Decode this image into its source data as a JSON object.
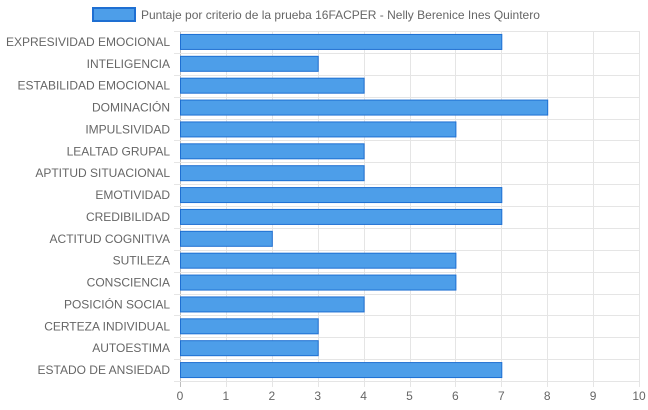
{
  "chart_data": {
    "type": "bar",
    "orientation": "horizontal",
    "categories": [
      "EXPRESIVIDAD EMOCIONAL",
      "INTELIGENCIA",
      "ESTABILIDAD EMOCIONAL",
      "DOMINACIÓN",
      "IMPULSIVIDAD",
      "LEALTAD GRUPAL",
      "APTITUD SITUACIONAL",
      "EMOTIVIDAD",
      "CREDIBILIDAD",
      "ACTITUD COGNITIVA",
      "SUTILEZA",
      "CONSCIENCIA",
      "POSICIÓN SOCIAL",
      "CERTEZA INDIVIDUAL",
      "AUTOESTIMA",
      "ESTADO DE ANSIEDAD"
    ],
    "series": [
      {
        "name": "Puntaje por criterio de la prueba 16FACPER - Nelly Berenice Ines Quintero",
        "values": [
          7,
          3,
          4,
          8,
          6,
          4,
          4,
          7,
          7,
          2,
          6,
          6,
          4,
          3,
          3,
          7
        ]
      }
    ],
    "xlim": [
      0,
      10
    ],
    "xticks": [
      "0",
      "1",
      "2",
      "3",
      "4",
      "5",
      "6",
      "7",
      "8",
      "9",
      "10"
    ],
    "grid": true,
    "legend_position": "top",
    "colors": {
      "bar_fill": "#4d9ee9",
      "bar_stroke": "#1e6fd2",
      "grid": "#e5e5e5",
      "text": "#666666"
    }
  }
}
